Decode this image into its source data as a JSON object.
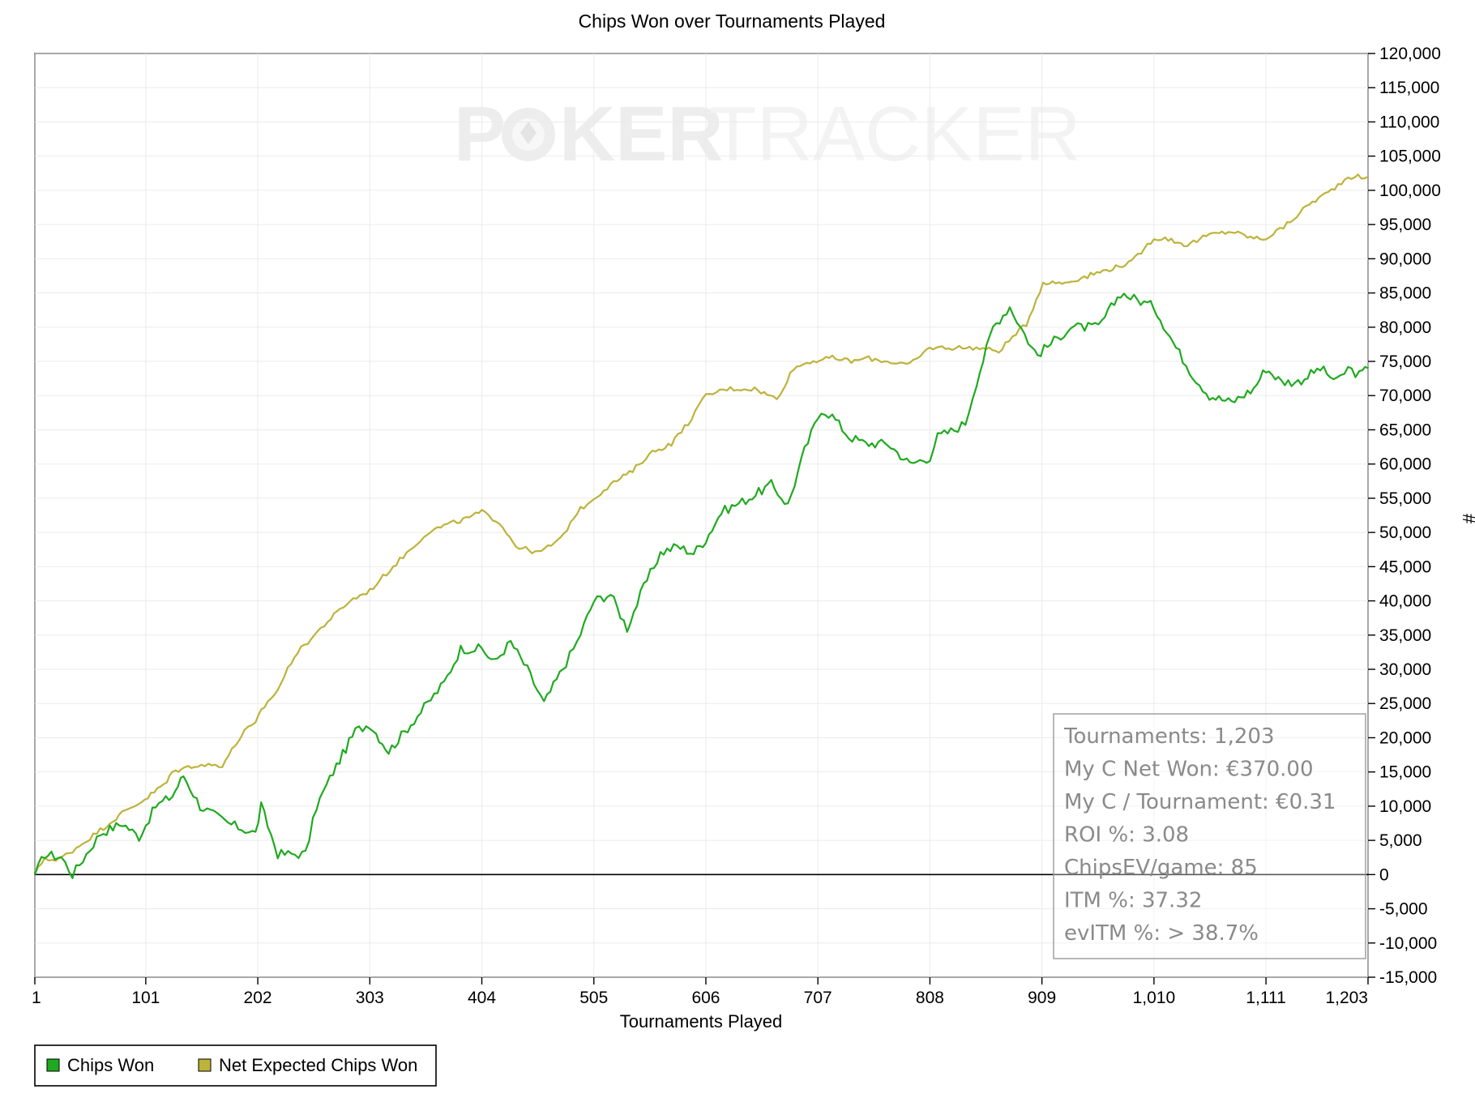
{
  "watermark": {
    "brand_bold": "P",
    "brand_bold2": "KER",
    "brand_light": "TRACKER"
  },
  "stats_box": {
    "lines": [
      "Tournaments: 1,203",
      "My C Net Won: €370.00",
      "My C / Tournament: €0.31",
      "ROI %: 3.08",
      "ChipsEV/game: 85",
      "ITM %: 37.32",
      "evITM %: > 38.7%"
    ]
  },
  "chart_data": {
    "type": "line",
    "title": "Chips Won over Tournaments Played",
    "xlabel": "Tournaments Played",
    "ylabel": "#",
    "xlim": [
      1,
      1203
    ],
    "ylim": [
      -15000,
      120000
    ],
    "x_ticks": [
      1,
      101,
      202,
      303,
      404,
      505,
      606,
      707,
      808,
      909,
      1010,
      1111,
      1203
    ],
    "x_tick_labels": [
      "1",
      "101",
      "202",
      "303",
      "404",
      "505",
      "606",
      "707",
      "808",
      "909",
      "1,010",
      "1,111",
      "1,203"
    ],
    "y_ticks": [
      -15000,
      -10000,
      -5000,
      0,
      5000,
      10000,
      15000,
      20000,
      25000,
      30000,
      35000,
      40000,
      45000,
      50000,
      55000,
      60000,
      65000,
      70000,
      75000,
      80000,
      85000,
      90000,
      95000,
      100000,
      105000,
      110000,
      115000,
      120000
    ],
    "y_tick_labels": [
      "-15,000",
      "-10,000",
      "-5,000",
      "0",
      "5,000",
      "10,000",
      "15,000",
      "20,000",
      "25,000",
      "30,000",
      "35,000",
      "40,000",
      "45,000",
      "50,000",
      "55,000",
      "60,000",
      "65,000",
      "70,000",
      "75,000",
      "80,000",
      "85,000",
      "90,000",
      "95,000",
      "100,000",
      "105,000",
      "110,000",
      "115,000",
      "120,000"
    ],
    "grid": true,
    "legend_position": "bottom-left",
    "series": [
      {
        "name": "Chips Won",
        "color": "#1faa1f",
        "x": [
          1,
          10,
          25,
          35,
          60,
          80,
          95,
          110,
          125,
          130,
          135,
          150,
          175,
          200,
          205,
          220,
          245,
          255,
          270,
          290,
          303,
          320,
          340,
          355,
          370,
          385,
          404,
          415,
          430,
          445,
          460,
          480,
          490,
          505,
          520,
          535,
          550,
          565,
          580,
          595,
          606,
          620,
          645,
          665,
          680,
          695,
          710,
          720,
          735,
          750,
          770,
          790,
          808,
          815,
          830,
          840,
          850,
          865,
          880,
          890,
          900,
          905,
          920,
          935,
          960,
          980,
          1010,
          1030,
          1045,
          1060,
          1080,
          1100,
          1111,
          1125,
          1140,
          1160,
          1175,
          1185,
          1195,
          1203
        ],
        "y": [
          0,
          3000,
          2500,
          0,
          6000,
          7500,
          5500,
          10000,
          11500,
          13000,
          14500,
          10000,
          7500,
          6000,
          10000,
          3000,
          3000,
          10000,
          15000,
          21000,
          22000,
          18000,
          22000,
          25000,
          28000,
          33000,
          33000,
          31000,
          34000,
          30000,
          25000,
          31000,
          34000,
          40000,
          41000,
          36000,
          42000,
          47000,
          48000,
          47000,
          49000,
          53000,
          55000,
          57000,
          54000,
          62000,
          68000,
          67000,
          64000,
          63000,
          63000,
          60000,
          61000,
          64000,
          65000,
          66000,
          72000,
          80000,
          83000,
          80000,
          77000,
          76000,
          78000,
          80000,
          80000,
          85000,
          83000,
          77000,
          73000,
          70000,
          69000,
          71000,
          74000,
          72000,
          72000,
          74000,
          72000,
          74000,
          73000,
          74000
        ]
      },
      {
        "name": "Net Expected Chips Won",
        "color": "#bdb33a",
        "x": [
          1,
          10,
          20,
          35,
          60,
          80,
          100,
          120,
          125,
          145,
          170,
          190,
          200,
          205,
          220,
          235,
          265,
          285,
          303,
          330,
          355,
          370,
          390,
          404,
          420,
          435,
          455,
          475,
          490,
          505,
          520,
          540,
          555,
          575,
          590,
          606,
          625,
          650,
          670,
          685,
          700,
          720,
          740,
          750,
          770,
          790,
          808,
          825,
          850,
          870,
          895,
          910,
          930,
          950,
          970,
          990,
          1010,
          1020,
          1040,
          1060,
          1080,
          1100,
          1111,
          1130,
          1150,
          1170,
          1185,
          1203
        ],
        "y": [
          0,
          2500,
          2000,
          3500,
          6500,
          9000,
          11000,
          13500,
          15000,
          16000,
          16000,
          21000,
          22000,
          24000,
          27000,
          32000,
          37000,
          40000,
          41500,
          46000,
          50000,
          51000,
          52000,
          53000,
          51500,
          48000,
          47000,
          49000,
          53000,
          55000,
          57000,
          59000,
          61500,
          63000,
          66000,
          70000,
          71000,
          71000,
          69500,
          74000,
          75000,
          75500,
          75000,
          75500,
          75000,
          74500,
          77000,
          77000,
          77000,
          76500,
          80500,
          86500,
          86500,
          87500,
          88500,
          89500,
          93000,
          93000,
          92000,
          93500,
          94000,
          93000,
          93000,
          95000,
          98000,
          100000,
          102000,
          102000
        ]
      }
    ]
  }
}
